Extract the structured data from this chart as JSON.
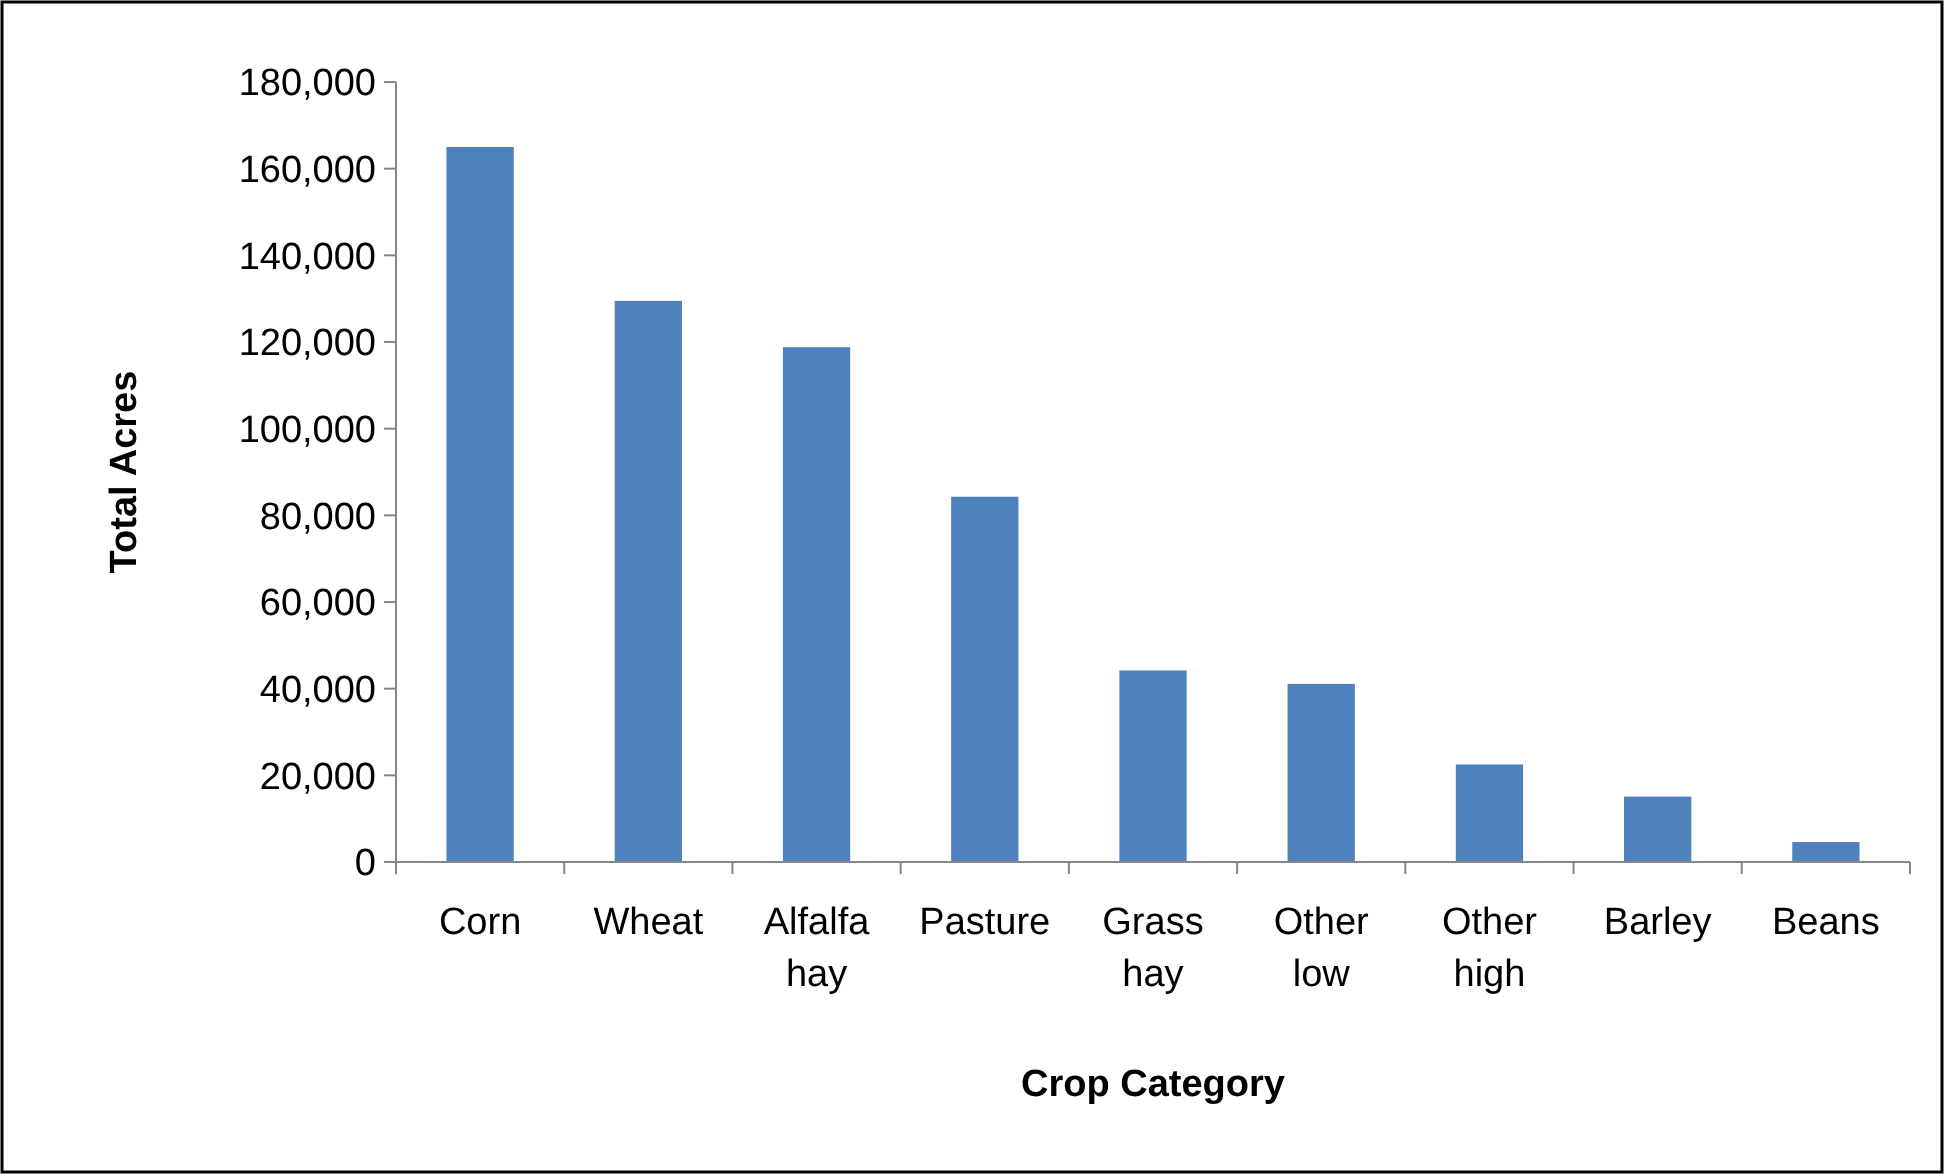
{
  "chart_data": {
    "type": "bar",
    "xlabel": "Crop Category",
    "ylabel": "Total Acres",
    "categories": [
      "Corn",
      "Wheat",
      "Alfalfa hay",
      "Pasture",
      "Grass hay",
      "Other low",
      "Other high",
      "Barley",
      "Beans"
    ],
    "values": [
      165000,
      129500,
      118800,
      84300,
      44200,
      41100,
      22500,
      15100,
      4600
    ],
    "color": "#4f81bd",
    "ylim": [
      0,
      180000
    ],
    "yticks": [
      {
        "value": 0,
        "label": "0"
      },
      {
        "value": 20000,
        "label": "20,000"
      },
      {
        "value": 40000,
        "label": "40,000"
      },
      {
        "value": 60000,
        "label": "60,000"
      },
      {
        "value": 80000,
        "label": "80,000"
      },
      {
        "value": 100000,
        "label": "100,000"
      },
      {
        "value": 120000,
        "label": "120,000"
      },
      {
        "value": 140000,
        "label": "140,000"
      },
      {
        "value": 160000,
        "label": "160,000"
      },
      {
        "value": 180000,
        "label": "180,000"
      }
    ],
    "grid": false
  }
}
